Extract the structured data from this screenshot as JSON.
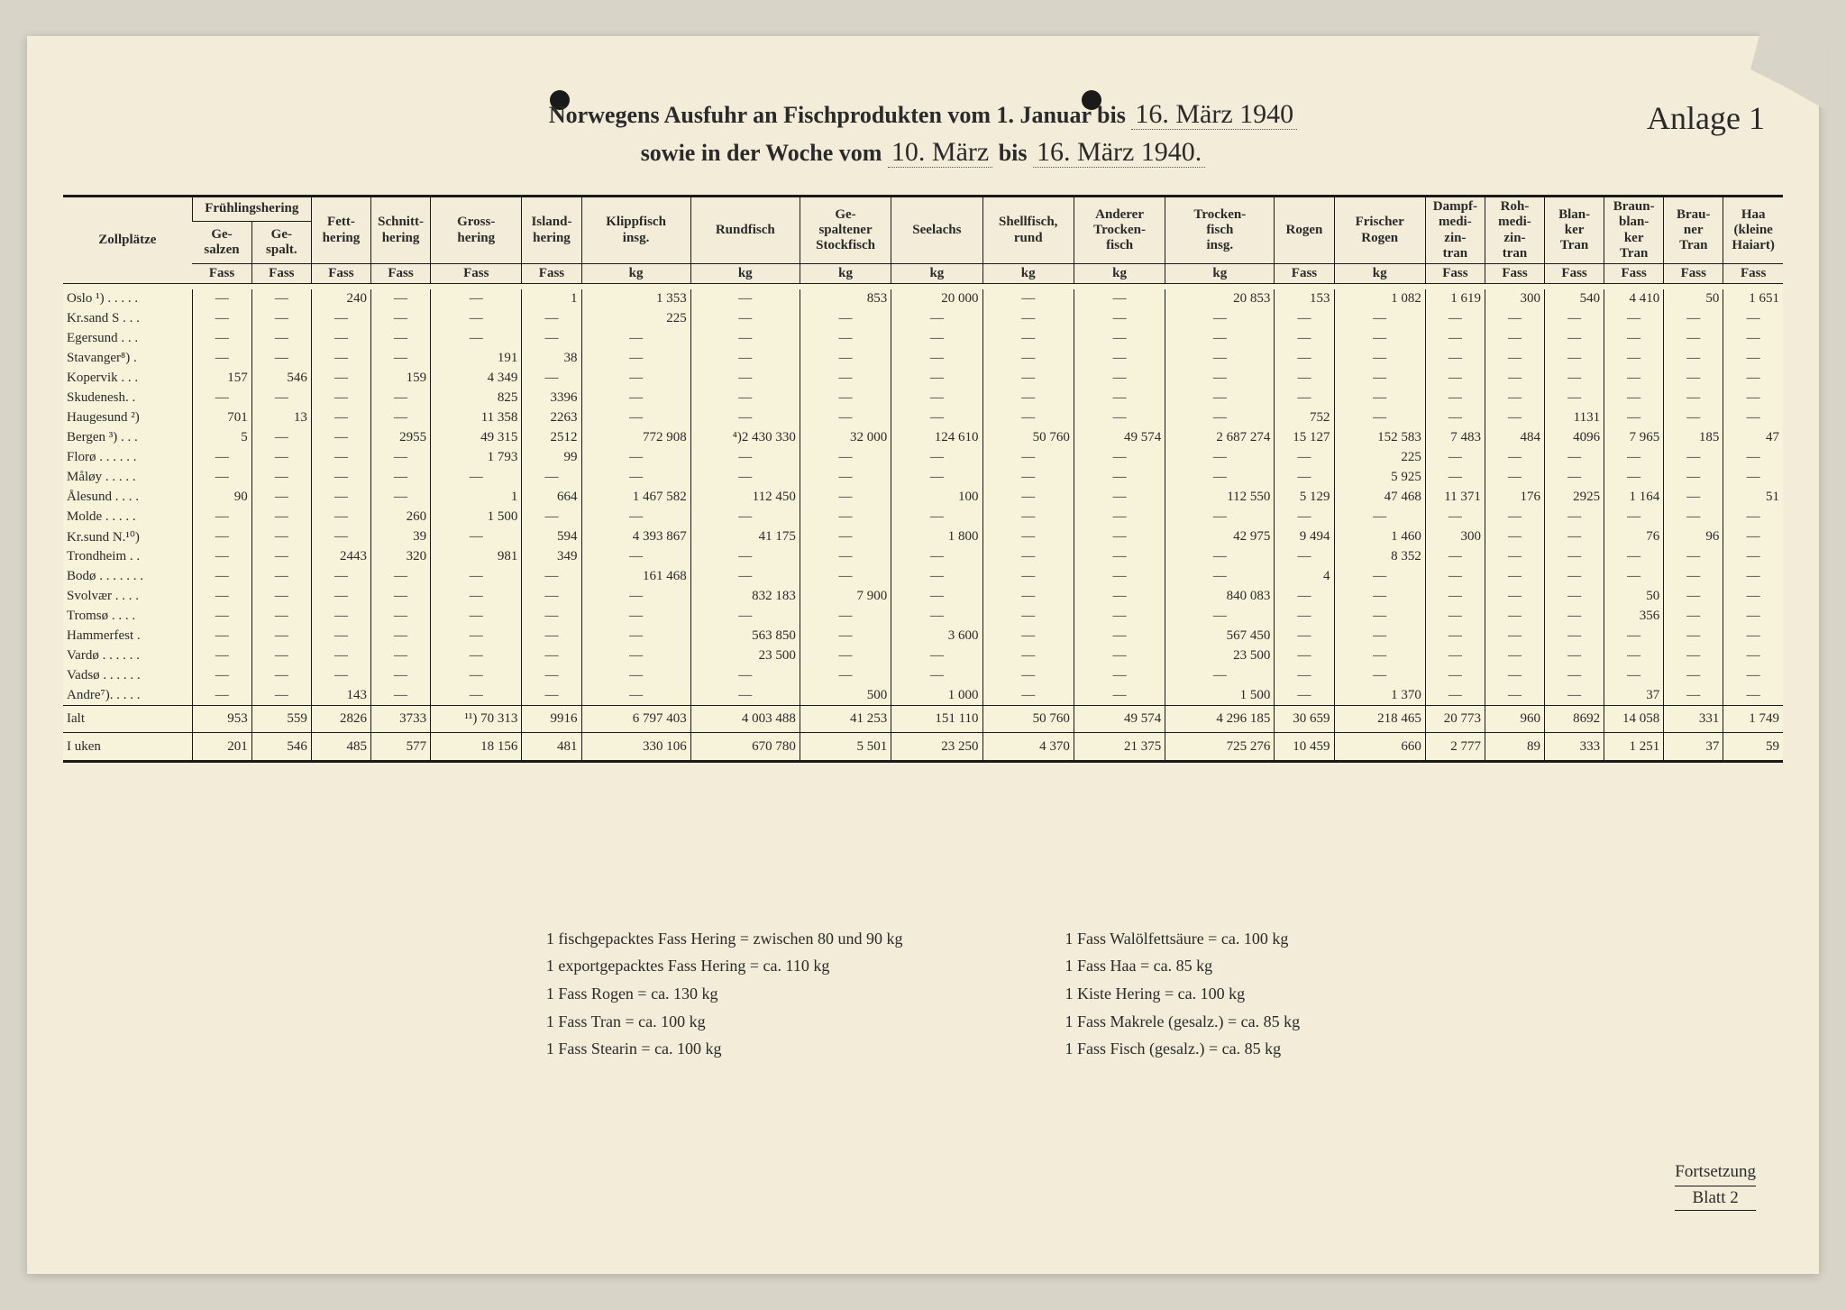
{
  "title": {
    "line1_a": "Norwegens Ausfuhr an Fischprodukten vom 1. Januar bis",
    "line1_hand": "16. März 1940",
    "line2_a": "sowie in der Woche vom",
    "line2_hand1": "10. März",
    "line2_b": "bis",
    "line2_hand2": "16. März 1940.",
    "anlage": "Anlage 1"
  },
  "headers": {
    "zoll": "Zollplätze",
    "fruh": "Frühlingshering",
    "gesalzen": "Ge-\nsalzen",
    "gespalt": "Ge-\nspalt.",
    "fass": "Fass",
    "kg": "kg",
    "fetthering": "Fett-\nhering",
    "schnitthering": "Schnitt-\nhering",
    "grosshering": "Gross-\nhering",
    "islandhering": "Island-\nhering",
    "klippfisch": "Klippfisch\ninsg.",
    "rundfisch": "Rundfisch",
    "gespstock": "Ge-\nspaltener\nStockfisch",
    "seelachs": "Seelachs",
    "shellfisch": "Shellfisch,\nrund",
    "anderer": "Anderer\nTrocken-\nfisch",
    "trocken": "Trocken-\nfisch\ninsg.",
    "rogen": "Rogen",
    "frischrogen": "Frischer\nRogen",
    "dampf": "Dampf-\nmedi-\nzin-\ntran",
    "roh": "Roh-\nmedi-\nzin-\ntran",
    "blanker": "Blan-\nker\nTran",
    "braunbl": "Braun-\nblan-\nker\nTran",
    "brauner": "Brau-\nner\nTran",
    "haa": "Haa\n(kleine\nHaiart)"
  },
  "rows": [
    {
      "label": "Oslo ¹) . . . . .",
      "c": [
        "—",
        "—",
        "240",
        "—",
        "—",
        "1",
        "1 353",
        "—",
        "853",
        "20 000",
        "—",
        "—",
        "20 853",
        "153",
        "1 082",
        "1 619",
        "300",
        "540",
        "4 410",
        "50",
        "1 651"
      ]
    },
    {
      "label": "Kr.sand S . . .",
      "c": [
        "—",
        "—",
        "—",
        "—",
        "—",
        "—",
        "225",
        "—",
        "—",
        "—",
        "—",
        "—",
        "—",
        "—",
        "—",
        "—",
        "—",
        "—",
        "—",
        "—",
        "—"
      ]
    },
    {
      "label": "Egersund . . .",
      "c": [
        "—",
        "—",
        "—",
        "—",
        "—",
        "—",
        "—",
        "—",
        "—",
        "—",
        "—",
        "—",
        "—",
        "—",
        "—",
        "—",
        "—",
        "—",
        "—",
        "—",
        "—"
      ]
    },
    {
      "label": "Stavanger⁸) .",
      "c": [
        "—",
        "—",
        "—",
        "—",
        "191",
        "38",
        "—",
        "—",
        "—",
        "—",
        "—",
        "—",
        "—",
        "—",
        "—",
        "—",
        "—",
        "—",
        "—",
        "—",
        "—"
      ]
    },
    {
      "label": "Kopervik . . .",
      "c": [
        "157",
        "546",
        "—",
        "159",
        "4 349",
        "—",
        "—",
        "—",
        "—",
        "—",
        "—",
        "—",
        "—",
        "—",
        "—",
        "—",
        "—",
        "—",
        "—",
        "—",
        "—"
      ]
    },
    {
      "label": "Skudenesh. .",
      "c": [
        "—",
        "—",
        "—",
        "—",
        "825",
        "3396",
        "—",
        "—",
        "—",
        "—",
        "—",
        "—",
        "—",
        "—",
        "—",
        "—",
        "—",
        "—",
        "—",
        "—",
        "—"
      ]
    },
    {
      "label": "Haugesund ²)",
      "c": [
        "701",
        "13",
        "—",
        "—",
        "11 358",
        "2263",
        "—",
        "—",
        "—",
        "—",
        "—",
        "—",
        "—",
        "752",
        "—",
        "—",
        "—",
        "1131",
        "—",
        "—",
        "—"
      ]
    },
    {
      "label": "Bergen ³) . . .",
      "c": [
        "5",
        "—",
        "—",
        "2955",
        "49 315",
        "2512",
        "772 908",
        "⁴)2 430 330",
        "32 000",
        "124 610",
        "50 760",
        "49 574",
        "2 687 274",
        "15 127",
        "152 583",
        "7 483",
        "484",
        "4096",
        "7 965",
        "185",
        "47"
      ]
    },
    {
      "label": "Florø . . . . . .",
      "c": [
        "—",
        "—",
        "—",
        "—",
        "1 793",
        "99",
        "—",
        "—",
        "—",
        "—",
        "—",
        "—",
        "—",
        "—",
        "225",
        "—",
        "—",
        "—",
        "—",
        "—",
        "—"
      ]
    },
    {
      "label": "Måløy . . . . .",
      "c": [
        "—",
        "—",
        "—",
        "—",
        "—",
        "—",
        "—",
        "—",
        "—",
        "—",
        "—",
        "—",
        "—",
        "—",
        "5 925",
        "—",
        "—",
        "—",
        "—",
        "—",
        "—"
      ]
    },
    {
      "label": "Ålesund . . . .",
      "c": [
        "90",
        "—",
        "—",
        "—",
        "1",
        "664",
        "1 467 582",
        "112 450",
        "—",
        "100",
        "—",
        "—",
        "112 550",
        "5 129",
        "47 468",
        "11 371",
        "176",
        "2925",
        "1 164",
        "—",
        "51"
      ]
    },
    {
      "label": "Molde  . . . . .",
      "c": [
        "—",
        "—",
        "—",
        "260",
        "1 500",
        "—",
        "—",
        "—",
        "—",
        "—",
        "—",
        "—",
        "—",
        "—",
        "—",
        "—",
        "—",
        "—",
        "—",
        "—",
        "—"
      ]
    },
    {
      "label": "Kr.sund N.¹⁰)",
      "c": [
        "—",
        "—",
        "—",
        "39",
        "—",
        "594",
        "4 393 867",
        "41 175",
        "—",
        "1 800",
        "—",
        "—",
        "42 975",
        "9 494",
        "1 460",
        "300",
        "—",
        "—",
        "76",
        "96",
        "—"
      ]
    },
    {
      "label": "Trondheim . .",
      "c": [
        "—",
        "—",
        "2443",
        "320",
        "981",
        "349",
        "—",
        "—",
        "—",
        "—",
        "—",
        "—",
        "—",
        "—",
        "8 352",
        "—",
        "—",
        "—",
        "—",
        "—",
        "—"
      ]
    },
    {
      "label": "Bodø . . . . . . .",
      "c": [
        "—",
        "—",
        "—",
        "—",
        "—",
        "—",
        "161 468",
        "—",
        "—",
        "—",
        "—",
        "—",
        "—",
        "4",
        "—",
        "—",
        "—",
        "—",
        "—",
        "—",
        "—"
      ]
    },
    {
      "label": "Svolvær  . . . .",
      "c": [
        "—",
        "—",
        "—",
        "—",
        "—",
        "—",
        "—",
        "832 183",
        "7 900",
        "—",
        "—",
        "—",
        "840 083",
        "—",
        "—",
        "—",
        "—",
        "—",
        "50",
        "—",
        "—"
      ]
    },
    {
      "label": "Tromsø . .  . .",
      "c": [
        "—",
        "—",
        "—",
        "—",
        "—",
        "—",
        "—",
        "—",
        "—",
        "—",
        "—",
        "—",
        "—",
        "—",
        "—",
        "—",
        "—",
        "—",
        "356",
        "—",
        "—"
      ]
    },
    {
      "label": "Hammerfest .",
      "c": [
        "—",
        "—",
        "—",
        "—",
        "—",
        "—",
        "—",
        "563 850",
        "—",
        "3 600",
        "—",
        "—",
        "567 450",
        "—",
        "—",
        "—",
        "—",
        "—",
        "—",
        "—",
        "—"
      ]
    },
    {
      "label": "Vardø . . . . . .",
      "c": [
        "—",
        "—",
        "—",
        "—",
        "—",
        "—",
        "—",
        "23 500",
        "—",
        "—",
        "—",
        "—",
        "23 500",
        "—",
        "—",
        "—",
        "—",
        "—",
        "—",
        "—",
        "—"
      ]
    },
    {
      "label": "Vadsø . . . . . .",
      "c": [
        "—",
        "—",
        "—",
        "—",
        "—",
        "—",
        "—",
        "—",
        "—",
        "—",
        "—",
        "—",
        "—",
        "—",
        "—",
        "—",
        "—",
        "—",
        "—",
        "—",
        "—"
      ]
    },
    {
      "label": "Andre⁷). . . . .",
      "c": [
        "—",
        "—",
        "143",
        "—",
        "—",
        "—",
        "—",
        "—",
        "500",
        "1 000",
        "—",
        "—",
        "1 500",
        "—",
        "1 370",
        "—",
        "—",
        "—",
        "37",
        "—",
        "—"
      ]
    }
  ],
  "totals": [
    {
      "label": "Ialt",
      "c": [
        "953",
        "559",
        "2826",
        "3733",
        "¹¹) 70 313",
        "9916",
        "6 797 403",
        "4 003 488",
        "41 253",
        "151 110",
        "50 760",
        "49 574",
        "4 296 185",
        "30 659",
        "218 465",
        "20 773",
        "960",
        "8692",
        "14 058",
        "331",
        "1 749"
      ]
    },
    {
      "label": "I uken",
      "c": [
        "201",
        "546",
        "485",
        "577",
        "18 156",
        "481",
        "330 106",
        "670 780",
        "5 501",
        "23 250",
        "4 370",
        "21 375",
        "725 276",
        "10 459",
        "660",
        "2 777",
        "89",
        "333",
        "1 251",
        "37",
        "59"
      ]
    }
  ],
  "footnotes": {
    "left": [
      "1 fischgepacktes Fass Hering = zwischen 80 und 90 kg",
      "1 exportgepacktes Fass Hering = ca. 110 kg",
      "1 Fass Rogen = ca. 130 kg",
      "1 Fass Tran = ca. 100 kg",
      "1 Fass Stearin = ca. 100 kg"
    ],
    "right": [
      "1 Fass Walölfettsäure = ca. 100 kg",
      "1 Fass Haa = ca. 85 kg",
      "1 Kiste Hering = ca. 100 kg",
      "1 Fass Makrele (gesalz.) = ca. 85 kg",
      "1 Fass Fisch (gesalz.) = ca. 85 kg"
    ]
  },
  "forts": {
    "a": "Fortsetzung",
    "b": "Blatt 2"
  }
}
